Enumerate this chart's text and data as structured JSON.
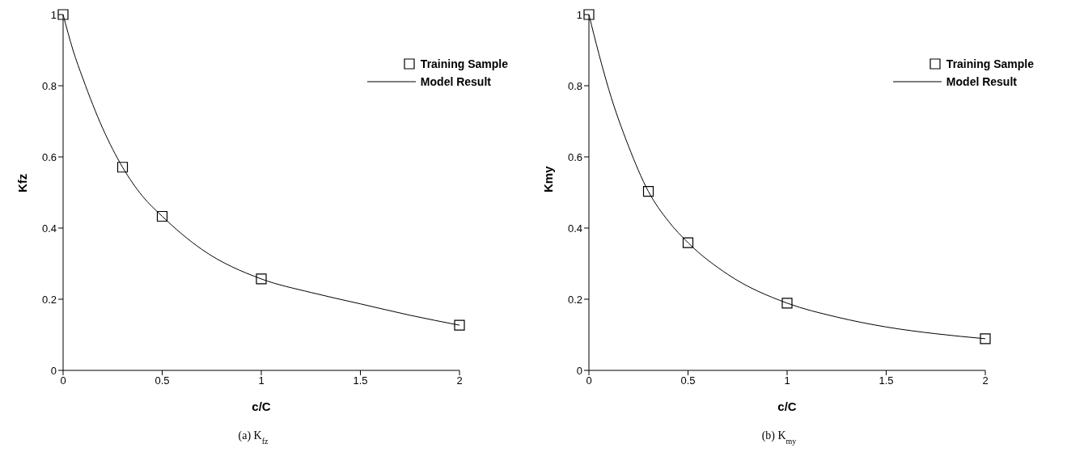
{
  "chart_data": [
    {
      "type": "scatter",
      "title": "(a) K$_{fz}$",
      "xlabel": "c/C",
      "ylabel": "Kfz",
      "xlim": [
        0,
        2
      ],
      "xticks": [
        0,
        0.5,
        1,
        1.5,
        2
      ],
      "ylim": [
        0,
        1
      ],
      "yticks": [
        0,
        0.2,
        0.4,
        0.6,
        0.8,
        1
      ],
      "grid": false,
      "legend": "top right",
      "series": [
        {
          "name": "Training Sample",
          "type": "scatter",
          "marker": "square",
          "color": "#000000",
          "x": [
            0,
            0.3,
            0.5,
            1,
            2
          ],
          "values": [
            1.0,
            0.571,
            0.433,
            0.257,
            0.127
          ]
        },
        {
          "name": "Model Result",
          "type": "line",
          "marker": "none",
          "line_style": "solid",
          "color": "#000000",
          "x": [
            0,
            0.05,
            0.1,
            0.2,
            0.3,
            0.4,
            0.5,
            0.7,
            1,
            1.25,
            1.5,
            1.75,
            2
          ],
          "values": [
            1.0,
            0.9,
            0.82,
            0.68,
            0.571,
            0.49,
            0.433,
            0.34,
            0.257,
            0.219,
            0.187,
            0.155,
            0.127
          ]
        }
      ]
    },
    {
      "type": "scatter",
      "title": "(b) K$_{my}$",
      "xlabel": "c/C",
      "ylabel": "Kmy",
      "xlim": [
        0,
        2
      ],
      "xticks": [
        0,
        0.5,
        1,
        1.5,
        2
      ],
      "ylim": [
        0,
        1
      ],
      "yticks": [
        0,
        0.2,
        0.4,
        0.6,
        0.8,
        1
      ],
      "grid": false,
      "legend": "top right",
      "series": [
        {
          "name": "Training Sample",
          "type": "scatter",
          "marker": "square",
          "color": "#000000",
          "x": [
            0,
            0.3,
            0.5,
            1,
            2
          ],
          "values": [
            1.0,
            0.503,
            0.359,
            0.189,
            0.089
          ]
        },
        {
          "name": "Model Result",
          "type": "line",
          "marker": "none",
          "line_style": "solid",
          "color": "#000000",
          "x": [
            0,
            0.05,
            0.1,
            0.2,
            0.3,
            0.4,
            0.5,
            0.7,
            1,
            1.25,
            1.5,
            1.75,
            2
          ],
          "values": [
            1.0,
            0.89,
            0.79,
            0.63,
            0.503,
            0.42,
            0.359,
            0.27,
            0.189,
            0.15,
            0.122,
            0.103,
            0.089
          ]
        }
      ]
    }
  ]
}
